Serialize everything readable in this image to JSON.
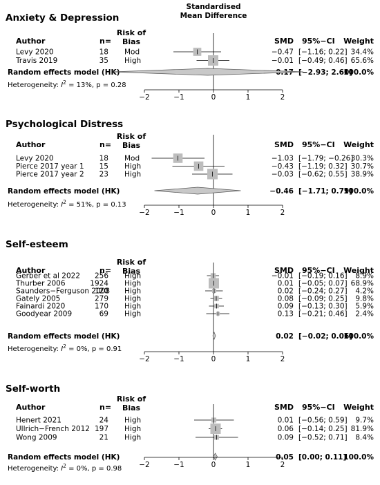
{
  "header": {
    "line1": "Standardised",
    "line2": "Mean Difference"
  },
  "columns": {
    "author": "Author",
    "n": "n=",
    "risk_line1": "Risk of",
    "risk_line2": "Bias",
    "smd": "SMD",
    "ci": "95%−CI",
    "weight": "Weight"
  },
  "axis_ticks": [
    "−2",
    "−1",
    "0",
    "1",
    "2"
  ],
  "colors": {
    "study_box": "#bdbdbd",
    "summary_diamond": "#c8c8c8",
    "lines": "#000000"
  },
  "chart_data": [
    {
      "type": "forest",
      "title": "Anxiety & Depression",
      "xlim": [
        -2,
        2
      ],
      "xticks": [
        -2,
        -1,
        0,
        1,
        2
      ],
      "studies": [
        {
          "author": "Levy 2020",
          "n": "18",
          "risk": "Mod",
          "smd": -0.47,
          "lower": -1.16,
          "upper": 0.22,
          "weight": 34.4,
          "smd_text": "−0.47",
          "ci_text": "[−1.16; 0.22]",
          "weight_text": "34.4%"
        },
        {
          "author": "Travis 2019",
          "n": "35",
          "risk": "High",
          "smd": -0.01,
          "lower": -0.49,
          "upper": 0.46,
          "weight": 65.6,
          "smd_text": "−0.01",
          "ci_text": "[−0.49; 0.46]",
          "weight_text": "65.6%"
        }
      ],
      "summary": {
        "label": "Random effects model (HK)",
        "smd": -0.17,
        "lower": -2.93,
        "upper": 2.6,
        "smd_text": "−0.17",
        "ci_text": "[−2.93; 2.60]",
        "weight_text": "100.0%"
      },
      "heterogeneity": {
        "prefix": "Heterogeneity: ",
        "i2_symbol": "I",
        "sup": "2",
        "rest": " = 13%, p = 0.28"
      }
    },
    {
      "type": "forest",
      "title": "Psychological Distress",
      "xlim": [
        -2,
        2
      ],
      "xticks": [
        -2,
        -1,
        0,
        1,
        2
      ],
      "studies": [
        {
          "author": "Levy 2020",
          "n": "18",
          "risk": "Mod",
          "smd": -1.03,
          "lower": -1.79,
          "upper": -0.26,
          "weight": 30.3,
          "smd_text": "−1.03",
          "ci_text": "[−1.79; −0.26]",
          "weight_text": "30.3%"
        },
        {
          "author": "Pierce 2017 year 1",
          "n": "15",
          "risk": "High",
          "smd": -0.43,
          "lower": -1.19,
          "upper": 0.32,
          "weight": 30.7,
          "smd_text": "−0.43",
          "ci_text": "[−1.19; 0.32]",
          "weight_text": "30.7%"
        },
        {
          "author": "Pierce 2017 year 2",
          "n": "23",
          "risk": "High",
          "smd": -0.03,
          "lower": -0.62,
          "upper": 0.55,
          "weight": 38.9,
          "smd_text": "−0.03",
          "ci_text": "[−0.62; 0.55]",
          "weight_text": "38.9%"
        }
      ],
      "summary": {
        "label": "Random effects model (HK)",
        "smd": -0.46,
        "lower": -1.71,
        "upper": 0.79,
        "smd_text": "−0.46",
        "ci_text": "[−1.71; 0.79]",
        "weight_text": "100.0%"
      },
      "heterogeneity": {
        "prefix": "Heterogeneity: ",
        "i2_symbol": "I",
        "sup": "2",
        "rest": " = 51%, p = 0.13"
      }
    },
    {
      "type": "forest",
      "title": "Self-esteem",
      "xlim": [
        -2,
        2
      ],
      "xticks": [
        -2,
        -1,
        0,
        1,
        2
      ],
      "studies": [
        {
          "author": "Gerber et al 2022",
          "n": "256",
          "risk": "High",
          "smd": -0.01,
          "lower": -0.19,
          "upper": 0.16,
          "weight": 8.9,
          "smd_text": "−0.01",
          "ci_text": "[−0.19; 0.16]",
          "weight_text": "8.9%"
        },
        {
          "author": "Thurber 2006",
          "n": "1924",
          "risk": "High",
          "smd": 0.01,
          "lower": -0.05,
          "upper": 0.07,
          "weight": 68.9,
          "smd_text": "0.01",
          "ci_text": "[−0.05; 0.07]",
          "weight_text": "68.9%"
        },
        {
          "author": "Saunders−Ferguson 2008",
          "n": "120",
          "risk": "High",
          "smd": 0.02,
          "lower": -0.24,
          "upper": 0.27,
          "weight": 4.2,
          "smd_text": "0.02",
          "ci_text": "[−0.24; 0.27]",
          "weight_text": "4.2%"
        },
        {
          "author": "Gately 2005",
          "n": "279",
          "risk": "High",
          "smd": 0.08,
          "lower": -0.09,
          "upper": 0.25,
          "weight": 9.8,
          "smd_text": "0.08",
          "ci_text": "[−0.09; 0.25]",
          "weight_text": "9.8%"
        },
        {
          "author": "Fainardi 2020",
          "n": "170",
          "risk": "High",
          "smd": 0.09,
          "lower": -0.13,
          "upper": 0.3,
          "weight": 5.9,
          "smd_text": "0.09",
          "ci_text": "[−0.13; 0.30]",
          "weight_text": "5.9%"
        },
        {
          "author": "Goodyear 2009",
          "n": "69",
          "risk": "High",
          "smd": 0.13,
          "lower": -0.21,
          "upper": 0.46,
          "weight": 2.4,
          "smd_text": "0.13",
          "ci_text": "[−0.21; 0.46]",
          "weight_text": "2.4%"
        }
      ],
      "summary": {
        "label": "Random effects model (HK)",
        "smd": 0.02,
        "lower": -0.02,
        "upper": 0.06,
        "smd_text": "0.02",
        "ci_text": "[−0.02; 0.06]",
        "weight_text": "100.0%"
      },
      "heterogeneity": {
        "prefix": "Heterogeneity: ",
        "i2_symbol": "I",
        "sup": "2",
        "rest": " = 0%, p = 0.91"
      }
    },
    {
      "type": "forest",
      "title": "Self-worth",
      "xlim": [
        -2,
        2
      ],
      "xticks": [
        -2,
        -1,
        0,
        1,
        2
      ],
      "studies": [
        {
          "author": "Henert 2021",
          "n": "24",
          "risk": "High",
          "smd": 0.01,
          "lower": -0.56,
          "upper": 0.59,
          "weight": 9.7,
          "smd_text": "0.01",
          "ci_text": "[−0.56; 0.59]",
          "weight_text": "9.7%"
        },
        {
          "author": "Ullrich−French 2012",
          "n": "197",
          "risk": "High",
          "smd": 0.06,
          "lower": -0.14,
          "upper": 0.25,
          "weight": 81.9,
          "smd_text": "0.06",
          "ci_text": "[−0.14; 0.25]",
          "weight_text": "81.9%"
        },
        {
          "author": "Wong 2009",
          "n": "21",
          "risk": "High",
          "smd": 0.09,
          "lower": -0.52,
          "upper": 0.71,
          "weight": 8.4,
          "smd_text": "0.09",
          "ci_text": "[−0.52; 0.71]",
          "weight_text": "8.4%"
        }
      ],
      "summary": {
        "label": "Random effects model (HK)",
        "smd": 0.05,
        "lower": 0.0,
        "upper": 0.11,
        "smd_text": "0.05",
        "ci_text": "[0.00; 0.11]",
        "weight_text": "100.0%"
      },
      "heterogeneity": {
        "prefix": "Heterogeneity: ",
        "i2_symbol": "I",
        "sup": "2",
        "rest": " = 0%, p = 0.98"
      }
    }
  ]
}
